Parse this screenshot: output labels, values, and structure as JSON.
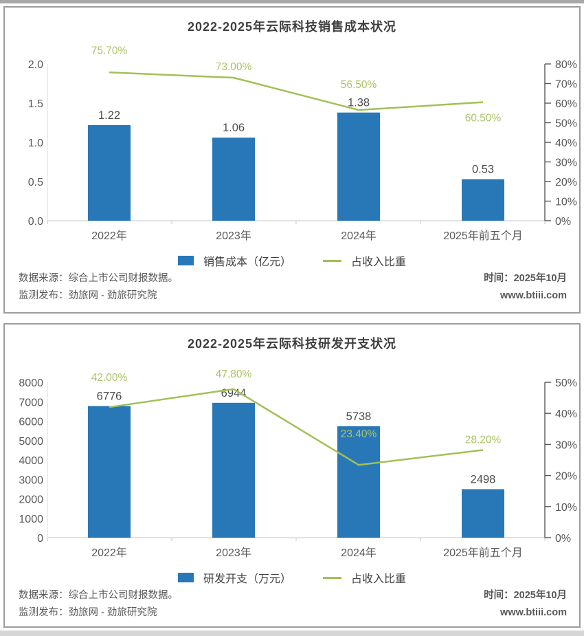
{
  "chart_data": [
    {
      "type": "bar",
      "combo": "bar+line dual-axis",
      "title": "2022-2025年云际科技销售成本状况",
      "categories": [
        "2022年",
        "2023年",
        "2024年",
        "2025年前五个月"
      ],
      "series": [
        {
          "name": "销售成本（亿元）",
          "type": "bar",
          "axis": "left",
          "color": "#2878b8",
          "values": [
            1.22,
            1.06,
            1.38,
            0.53
          ],
          "value_labels": [
            "1.22",
            "1.06",
            "1.38",
            "0.53"
          ]
        },
        {
          "name": "占收入比重",
          "type": "line",
          "axis": "right",
          "color": "#a2c154",
          "values": [
            75.7,
            73.0,
            56.5,
            60.5
          ],
          "point_labels": [
            "75.70%",
            "73.00%",
            "56.50%",
            "60.50%"
          ]
        }
      ],
      "left_axis": {
        "min": 0,
        "max": 2.0,
        "tick_labels": [
          "0.0",
          "0.5",
          "1.0",
          "1.5",
          "2.0"
        ]
      },
      "right_axis": {
        "min": 0,
        "max": 80,
        "tick_labels": [
          "0%",
          "10%",
          "20%",
          "30%",
          "40%",
          "50%",
          "60%",
          "70%",
          "80%"
        ]
      },
      "grid": false,
      "legend_position": "bottom",
      "colors": {
        "bar": "#2878b8",
        "line": "#a2c154",
        "point_label": "#aac465",
        "value_label": "#4d4d4d",
        "axis_text": "#595959"
      },
      "footer": {
        "source": "数据来源：综合上市公司财报数据。",
        "publisher": "监测发布：劲旅网 - 劲旅研究院",
        "time": "时间：2025年10月",
        "website": "www.btiii.com"
      }
    },
    {
      "type": "bar",
      "combo": "bar+line dual-axis",
      "title": "2022-2025年云际科技研发开支状况",
      "categories": [
        "2022年",
        "2023年",
        "2024年",
        "2025年前五个月"
      ],
      "series": [
        {
          "name": "研发开支（万元）",
          "type": "bar",
          "axis": "left",
          "color": "#2878b8",
          "values": [
            6776,
            6944,
            5738,
            2498
          ],
          "value_labels": [
            "6776",
            "6944",
            "5738",
            "2498"
          ]
        },
        {
          "name": "占收入比重",
          "type": "line",
          "axis": "right",
          "color": "#a2c154",
          "values": [
            42.0,
            47.8,
            23.4,
            28.2
          ],
          "point_labels": [
            "42.00%",
            "47.80%",
            "23.40%",
            "28.20%"
          ]
        }
      ],
      "left_axis": {
        "min": 0,
        "max": 8000,
        "tick_labels": [
          "0",
          "1000",
          "2000",
          "3000",
          "4000",
          "5000",
          "6000",
          "7000",
          "8000"
        ]
      },
      "right_axis": {
        "min": 0,
        "max": 50,
        "tick_labels": [
          "0%",
          "10%",
          "20%",
          "30%",
          "40%",
          "50%"
        ]
      },
      "grid": false,
      "legend_position": "bottom",
      "colors": {
        "bar": "#2878b8",
        "line": "#a2c154",
        "point_label": "#aac465",
        "value_label": "#4d4d4d",
        "axis_text": "#595959"
      },
      "footer": {
        "source": "数据来源：综合上市公司财报数据。",
        "publisher": "监测发布：劲旅网 - 劲旅研究院",
        "time": "时间：2025年10月",
        "website": "www.btiii.com"
      }
    }
  ]
}
